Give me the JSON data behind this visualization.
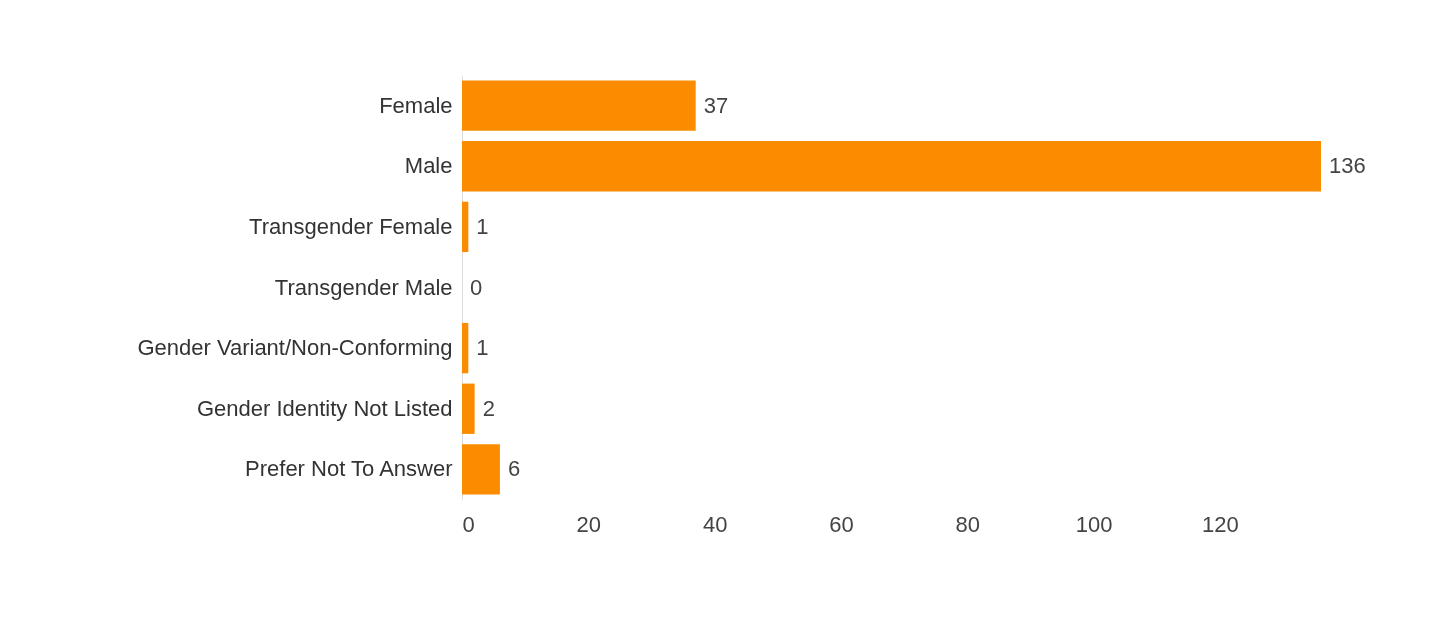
{
  "chart_data": {
    "type": "bar",
    "orientation": "horizontal",
    "categories": [
      "Female",
      "Male",
      "Transgender Female",
      "Transgender Male",
      "Gender Variant/Non-Conforming",
      "Gender Identity Not Listed",
      "Prefer Not To Answer"
    ],
    "values": [
      37,
      136,
      1,
      0,
      1,
      2,
      6
    ],
    "color": "#fb8c00",
    "xlim": [
      0,
      136
    ],
    "xticks": [
      0,
      20,
      40,
      60,
      80,
      100,
      120
    ],
    "data_labels": true,
    "grid": false
  }
}
